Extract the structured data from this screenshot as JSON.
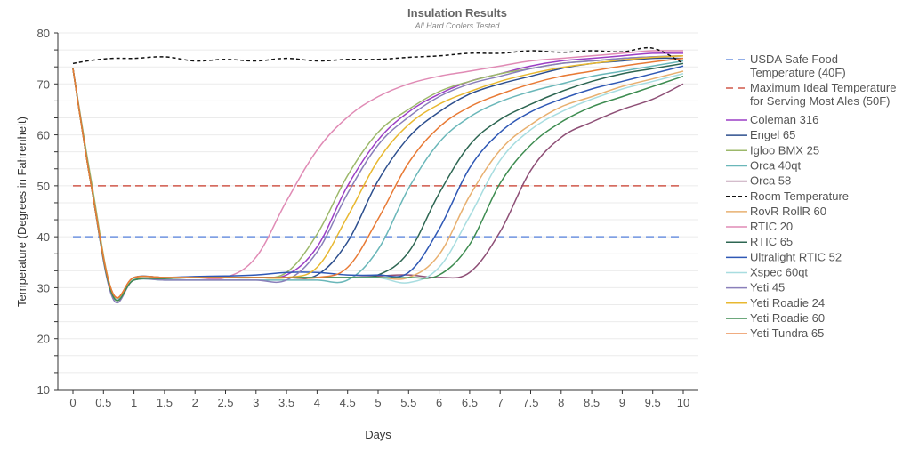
{
  "chart_data": {
    "type": "line",
    "title": "Insulation Results",
    "subtitle": "All Hard Coolers Tested",
    "xlabel": "Days",
    "ylabel": "Temperature (Degrees in Fahrenheit)",
    "xlim": [
      0,
      10
    ],
    "ylim": [
      10,
      80
    ],
    "x_ticks": [
      "0",
      "0.5",
      "1",
      "1.5",
      "2",
      "2.5",
      "3",
      "3.5",
      "4",
      "4.5",
      "5",
      "5.5",
      "6",
      "6.5",
      "7",
      "7.5",
      "8",
      "8.5",
      "9",
      "9.5",
      "10"
    ],
    "y_ticks": [
      "10",
      "20",
      "30",
      "40",
      "50",
      "60",
      "70",
      "80"
    ],
    "grid": true,
    "legend_position": "right",
    "x": [
      0,
      0.3,
      0.65,
      1,
      1.5,
      2,
      2.5,
      3,
      3.5,
      4,
      4.5,
      5,
      5.5,
      6,
      6.5,
      7,
      7.5,
      8,
      8.5,
      9,
      9.5,
      10
    ],
    "reference_lines": [
      {
        "name_lines": [
          "USDA Safe Food",
          "Temperature (40F)"
        ],
        "value": 40,
        "color": "#6f94e0",
        "dash": "dashed"
      },
      {
        "name_lines": [
          "Maximum Ideal Temperature",
          "for Serving Most Ales (50F)"
        ],
        "value": 50,
        "color": "#d0584a",
        "dash": "dashed"
      }
    ],
    "series": [
      {
        "name": "Coleman 316",
        "color": "#9c3fc5",
        "values": [
          73,
          50,
          29,
          32,
          32,
          32,
          32,
          32,
          32.5,
          38,
          50,
          59,
          64.5,
          68,
          70.5,
          72,
          73.5,
          74.5,
          75,
          75.5,
          76,
          76
        ]
      },
      {
        "name": "Engel 65",
        "color": "#2d4f8e",
        "values": [
          73,
          50,
          28.5,
          31.8,
          32,
          32,
          32,
          32,
          32,
          32.5,
          39,
          51,
          59.5,
          64.5,
          68,
          70,
          71.5,
          73,
          74,
          74.5,
          75,
          75
        ]
      },
      {
        "name": "Igloo BMX 25",
        "color": "#9cb86a",
        "values": [
          73,
          51,
          29,
          32,
          32,
          32,
          32,
          32,
          33,
          40.5,
          52,
          60.5,
          65,
          68.5,
          70.5,
          72,
          73,
          74,
          74.5,
          75,
          75.3,
          75.5
        ]
      },
      {
        "name": "Orca 40qt",
        "color": "#6ab7b9",
        "values": [
          73,
          50,
          28.5,
          31.5,
          31.5,
          31.5,
          31.5,
          31.5,
          31.5,
          31.5,
          31.5,
          37.5,
          49.5,
          58.5,
          63.5,
          66.5,
          68.5,
          70,
          71.5,
          72.5,
          73.5,
          74.5
        ]
      },
      {
        "name": "Orca 58",
        "color": "#8e4f76",
        "values": [
          73,
          50,
          28.5,
          31.5,
          31.8,
          32,
          32,
          32,
          32,
          32,
          32,
          32.3,
          32.5,
          32,
          33,
          41,
          53,
          59.5,
          62.5,
          65,
          67,
          70
        ]
      },
      {
        "name": "Room Temperature",
        "color": "#111111",
        "dash": "dotted",
        "values": [
          74,
          74.6,
          75,
          75,
          75.3,
          74.5,
          74.8,
          74.5,
          75,
          74.5,
          74.8,
          74.8,
          75.2,
          75.5,
          76,
          76,
          76.5,
          76.2,
          76.5,
          76.3,
          77,
          74
        ]
      },
      {
        "name": "RovR RollR 60",
        "color": "#e8b070",
        "values": [
          73,
          50,
          28.5,
          31.8,
          32,
          32,
          32,
          32,
          32,
          32,
          32,
          32,
          32,
          36.5,
          48,
          57,
          62,
          65.5,
          67.5,
          69.5,
          71,
          72.5
        ]
      },
      {
        "name": "RTIC 20",
        "color": "#e08bb5",
        "values": [
          73,
          50,
          29,
          32,
          32,
          32,
          32,
          36,
          47,
          57,
          63.5,
          67.5,
          70,
          71.5,
          72.5,
          73.5,
          74.5,
          75,
          75.5,
          76,
          76.5,
          76.5
        ]
      },
      {
        "name": "RTIC 65",
        "color": "#2d6652",
        "values": [
          73,
          50,
          28.5,
          31.8,
          32,
          32,
          32,
          32,
          32,
          32,
          32,
          32.5,
          37,
          48.5,
          58,
          63,
          66,
          68.5,
          70.5,
          72,
          73,
          74
        ]
      },
      {
        "name": "Ultralight RTIC 52",
        "color": "#2f58b5",
        "values": [
          73,
          50,
          28.5,
          32,
          32,
          32.2,
          32.3,
          32.5,
          33,
          33,
          32.5,
          32.5,
          33,
          41.5,
          53.5,
          60.5,
          64.5,
          67,
          69,
          70.5,
          72,
          73.5
        ]
      },
      {
        "name": "Xspec 60qt",
        "color": "#a8dde0",
        "values": [
          73,
          50,
          28.5,
          31.8,
          32,
          32,
          32,
          32,
          32,
          32,
          32,
          32,
          31,
          34,
          44,
          55,
          61,
          64.5,
          67,
          69,
          70.5,
          72
        ]
      },
      {
        "name": "Yeti 45",
        "color": "#8a7fba",
        "values": [
          73,
          50,
          28,
          31.5,
          31.5,
          31.5,
          31.5,
          31.5,
          31.5,
          37,
          48.5,
          58,
          63.5,
          67.5,
          70,
          71.5,
          73,
          74,
          74.5,
          75,
          75.3,
          75.5
        ]
      },
      {
        "name": "Yeti Roadie 24",
        "color": "#e8b830",
        "values": [
          73,
          50,
          29,
          32,
          32,
          32,
          32,
          32,
          32,
          34,
          44,
          55,
          62,
          66,
          68.5,
          70.5,
          72,
          73.2,
          74,
          74.7,
          75.2,
          75.5
        ]
      },
      {
        "name": "Yeti Roadie 60",
        "color": "#3d8c50",
        "values": [
          73,
          50,
          28.5,
          31.5,
          31.8,
          32,
          32,
          32,
          32,
          32,
          32,
          32,
          32,
          32.5,
          38.5,
          50.5,
          58,
          62.5,
          65.5,
          67.5,
          69.5,
          71.5
        ]
      },
      {
        "name": "Yeti Tundra 65",
        "color": "#e87a35",
        "values": [
          73,
          50,
          29,
          32,
          32,
          32,
          32,
          32,
          32,
          32,
          34,
          43.5,
          54.5,
          61.5,
          65.5,
          68,
          70,
          71.5,
          72.5,
          73.5,
          74.3,
          75
        ]
      }
    ]
  }
}
